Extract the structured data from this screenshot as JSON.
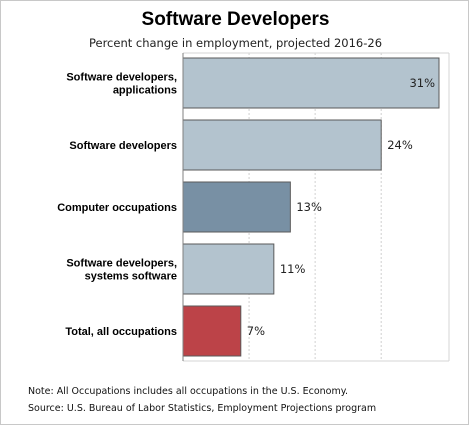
{
  "chart_data": {
    "type": "bar",
    "orientation": "horizontal",
    "title": "Software Developers",
    "subtitle": "Percent change in employment, projected 2016-26",
    "categories": [
      [
        "Software developers,",
        "applications"
      ],
      [
        "Software developers"
      ],
      [
        "Computer occupations"
      ],
      [
        "Software developers,",
        "systems software"
      ],
      [
        "Total, all occupations"
      ]
    ],
    "values": [
      31,
      24,
      13,
      11,
      7
    ],
    "value_labels": [
      "31%",
      "24%",
      "13%",
      "11%",
      "7%"
    ],
    "bar_colors": [
      "#b3c3ce",
      "#b3c3ce",
      "#7890a4",
      "#b3c3ce",
      "#bc4348"
    ],
    "xlim": [
      0,
      31
    ],
    "grid": true,
    "note": "Note: All Occupations includes all occupations in the U.S. Economy.",
    "source": "Source: U.S. Bureau of Labor Statistics, Employment Projections program"
  }
}
